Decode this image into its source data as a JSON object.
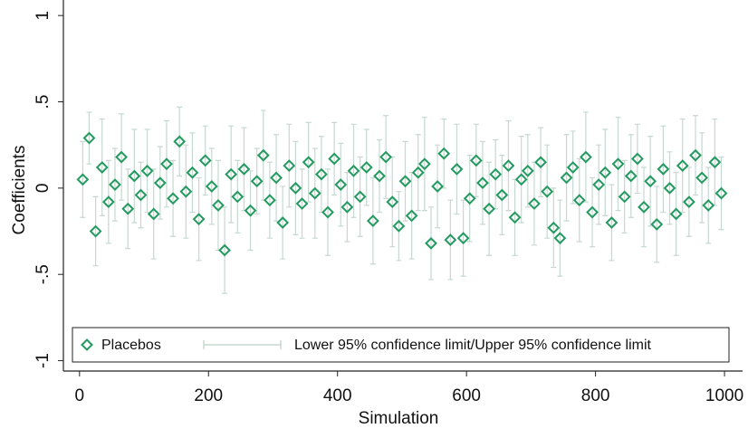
{
  "chart_data": {
    "type": "scatter-errorbar",
    "x_label": "Simulation",
    "y_label": "Coefficients",
    "xlim": [
      -25,
      1028
    ],
    "ylim": [
      -1.06,
      1.09
    ],
    "xticks": [
      0,
      200,
      400,
      600,
      800,
      1000
    ],
    "yticks": [
      -1,
      {
        "value": -0.5,
        "label": "-.5"
      },
      0,
      {
        "value": 0.5,
        "label": ".5"
      },
      1
    ],
    "x": [
      5,
      15,
      25,
      35,
      45,
      55,
      65,
      75,
      85,
      95,
      105,
      115,
      125,
      135,
      145,
      155,
      165,
      175,
      185,
      195,
      205,
      215,
      225,
      235,
      245,
      255,
      265,
      275,
      285,
      295,
      305,
      315,
      325,
      335,
      345,
      355,
      365,
      375,
      385,
      395,
      405,
      415,
      425,
      435,
      445,
      455,
      465,
      475,
      485,
      495,
      505,
      515,
      525,
      535,
      545,
      555,
      565,
      575,
      585,
      595,
      605,
      615,
      625,
      635,
      645,
      655,
      665,
      675,
      685,
      695,
      705,
      715,
      725,
      735,
      745,
      755,
      765,
      775,
      785,
      795,
      805,
      815,
      825,
      835,
      845,
      855,
      865,
      875,
      885,
      895,
      905,
      915,
      925,
      935,
      945,
      955,
      965,
      975,
      985,
      995
    ],
    "series": [
      {
        "name": "Placebos",
        "color": "#239a5f",
        "values": [
          0.05,
          0.29,
          -0.25,
          0.12,
          -0.08,
          0.02,
          0.18,
          -0.12,
          0.07,
          -0.04,
          0.1,
          -0.15,
          0.03,
          0.14,
          -0.06,
          0.27,
          -0.02,
          0.09,
          -0.18,
          0.16,
          0.01,
          -0.1,
          -0.36,
          0.08,
          -0.05,
          0.11,
          -0.13,
          0.04,
          0.19,
          -0.07,
          0.06,
          -0.2,
          0.13,
          0.0,
          -0.09,
          0.15,
          -0.03,
          0.08,
          -0.14,
          0.17,
          0.02,
          -0.11,
          0.1,
          -0.05,
          0.12,
          -0.19,
          0.07,
          0.18,
          -0.08,
          -0.22,
          0.04,
          -0.16,
          0.09,
          0.14,
          -0.32,
          0.01,
          0.2,
          -0.3,
          0.11,
          -0.29,
          -0.06,
          0.16,
          0.03,
          -0.12,
          0.08,
          -0.04,
          0.13,
          -0.17,
          0.05,
          0.1,
          -0.09,
          0.15,
          -0.02,
          -0.23,
          -0.29,
          0.06,
          0.12,
          -0.07,
          0.18,
          -0.14,
          0.02,
          0.09,
          -0.2,
          0.14,
          -0.05,
          0.07,
          0.17,
          -0.11,
          0.04,
          -0.21,
          0.11,
          0.0,
          -0.15,
          0.13,
          -0.08,
          0.19,
          0.06,
          -0.1,
          0.15,
          -0.03
        ]
      },
      {
        "name": "Lower 95% confidence limit/Upper 95% confidence limit",
        "color": "#c6d8d1",
        "errors": [
          0.22,
          0.15,
          0.2,
          0.28,
          0.24,
          0.21,
          0.25,
          0.23,
          0.27,
          0.19,
          0.24,
          0.26,
          0.21,
          0.25,
          0.22,
          0.2,
          0.27,
          0.23,
          0.24,
          0.2,
          0.22,
          0.26,
          0.25,
          0.28,
          0.21,
          0.24,
          0.23,
          0.19,
          0.26,
          0.22,
          0.25,
          0.21,
          0.24,
          0.27,
          0.2,
          0.23,
          0.26,
          0.22,
          0.25,
          0.21,
          0.24,
          0.2,
          0.27,
          0.23,
          0.22,
          0.25,
          0.21,
          0.24,
          0.26,
          0.2,
          0.23,
          0.25,
          0.22,
          0.27,
          0.21,
          0.24,
          0.2,
          0.23,
          0.26,
          0.22,
          0.25,
          0.21,
          0.24,
          0.27,
          0.2,
          0.23,
          0.26,
          0.22,
          0.25,
          0.21,
          0.24,
          0.2,
          0.27,
          0.23,
          0.22,
          0.25,
          0.21,
          0.24,
          0.26,
          0.2,
          0.23,
          0.25,
          0.22,
          0.27,
          0.21,
          0.24,
          0.2,
          0.23,
          0.26,
          0.22,
          0.25,
          0.21,
          0.24,
          0.27,
          0.2,
          0.23,
          0.26,
          0.22,
          0.25,
          0.21
        ]
      }
    ]
  }
}
